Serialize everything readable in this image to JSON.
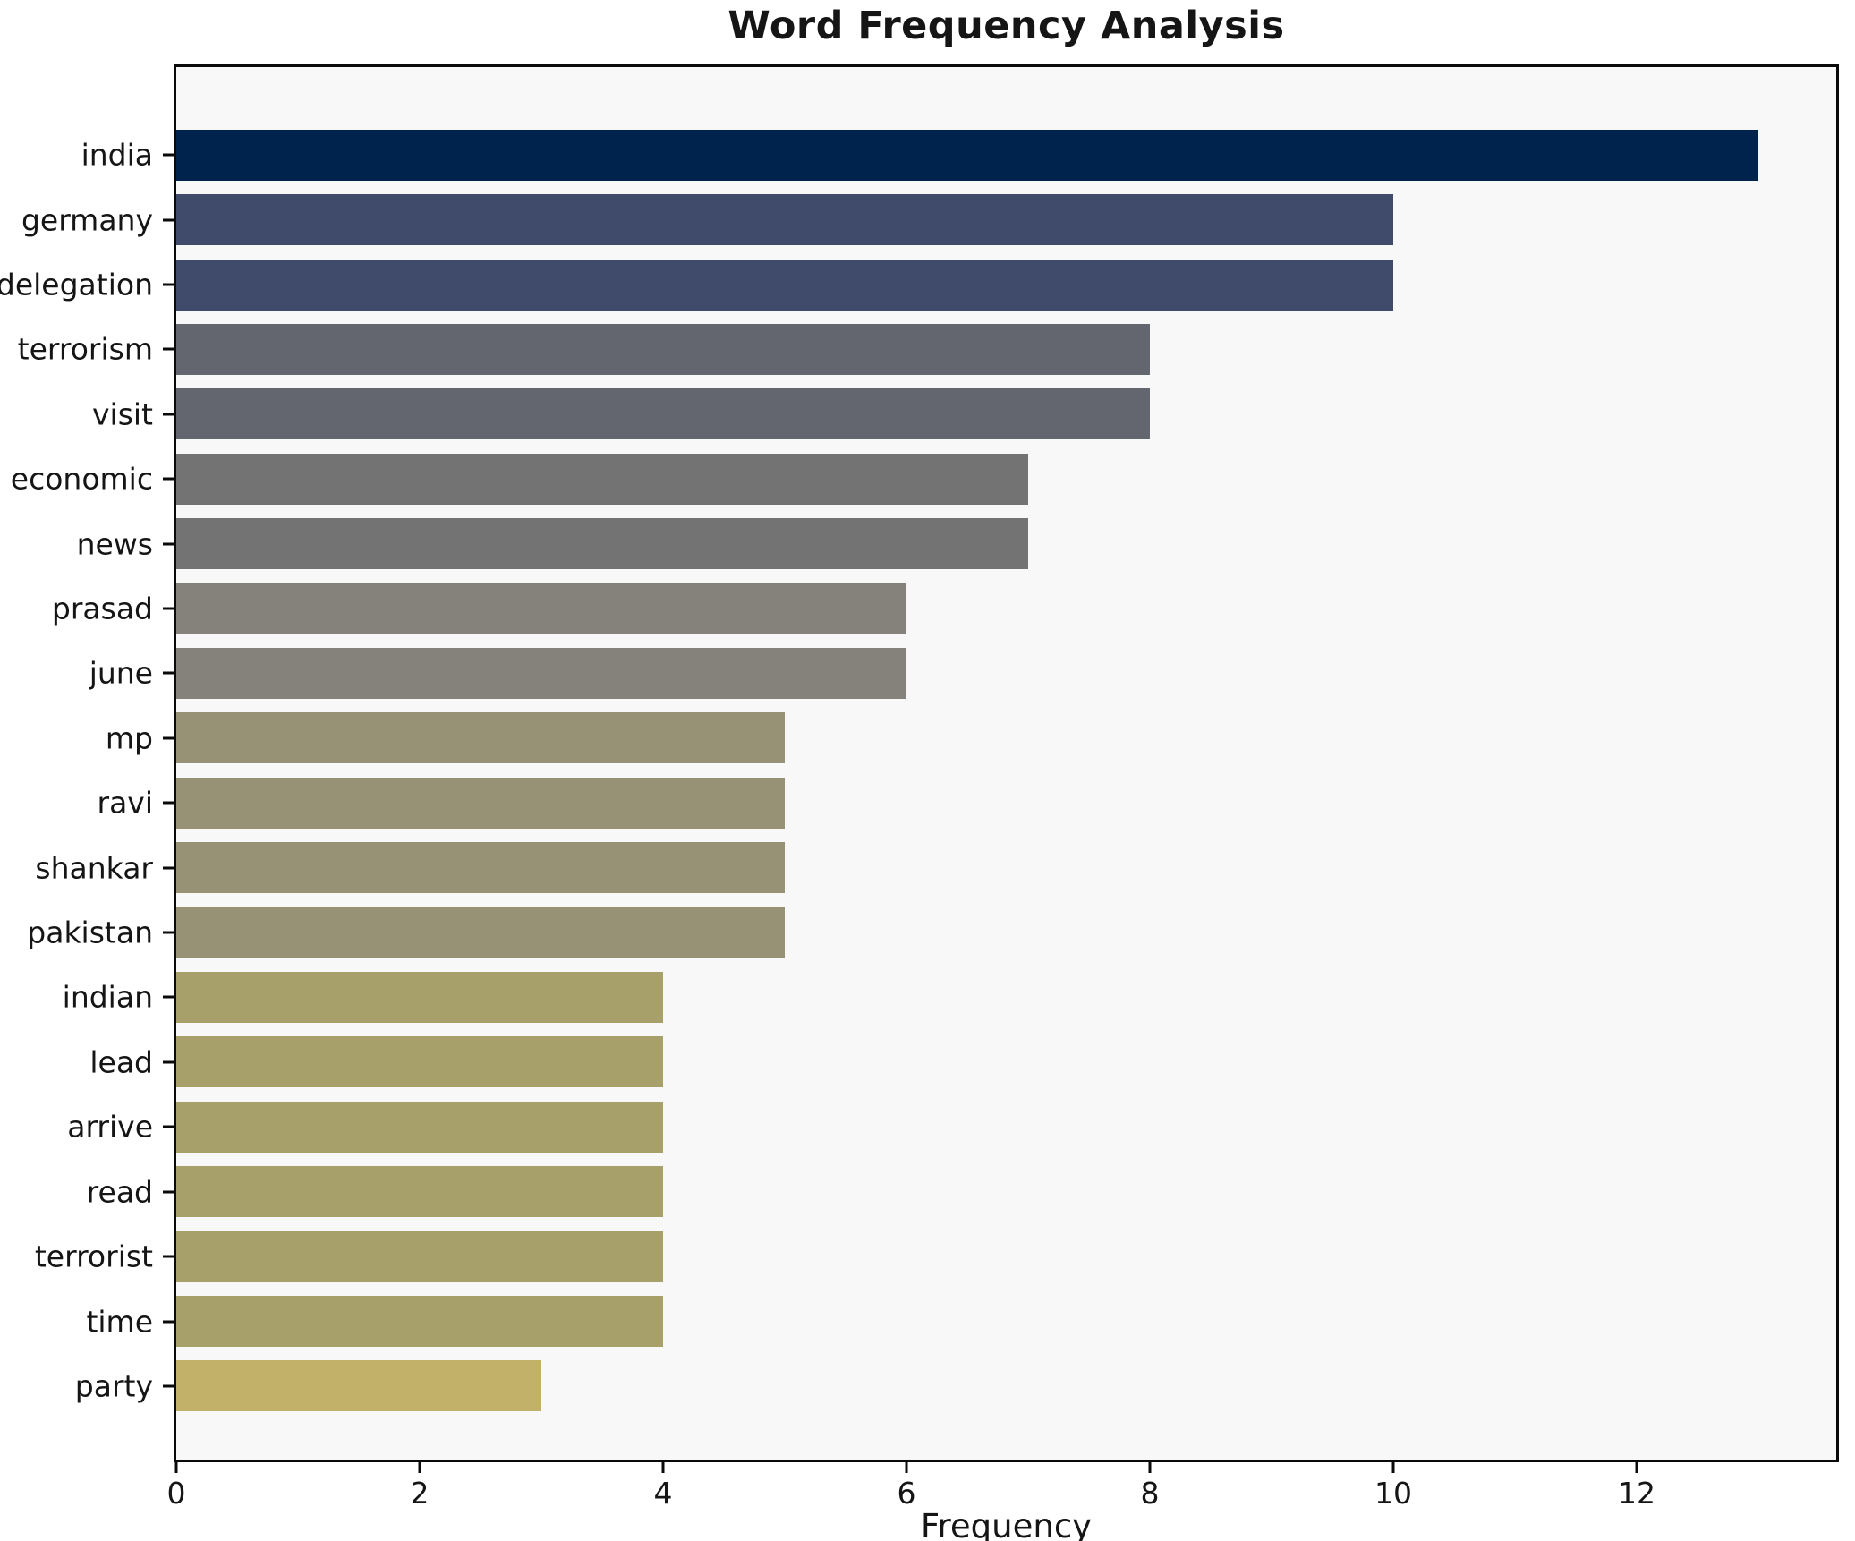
{
  "chart_data": {
    "type": "bar",
    "orientation": "horizontal",
    "title": "Word Frequency Analysis",
    "xlabel": "Frequency",
    "ylabel": "",
    "categories": [
      "india",
      "germany",
      "delegation",
      "terrorism",
      "visit",
      "economic",
      "news",
      "prasad",
      "june",
      "mp",
      "ravi",
      "shankar",
      "pakistan",
      "indian",
      "lead",
      "arrive",
      "read",
      "terrorist",
      "time",
      "party"
    ],
    "values": [
      13,
      10,
      10,
      8,
      8,
      7,
      7,
      6,
      6,
      5,
      5,
      5,
      5,
      4,
      4,
      4,
      4,
      4,
      4,
      3
    ],
    "bar_colors": [
      "#00234e",
      "#404b6b",
      "#404b6b",
      "#63656f",
      "#63656f",
      "#737374",
      "#737374",
      "#84827b",
      "#84827b",
      "#979275",
      "#979275",
      "#979275",
      "#979275",
      "#a8a06b",
      "#a8a06b",
      "#a8a06b",
      "#a8a06b",
      "#a8a06b",
      "#a8a06b",
      "#c2b169"
    ],
    "xticks": [
      0,
      2,
      4,
      6,
      8,
      10,
      12
    ],
    "xlim": [
      0,
      13.64
    ],
    "grid": false,
    "legend": "none",
    "plot_background": "#f8f8f8",
    "page_background": "#ffffff",
    "axis_color": "#0a0a0a"
  }
}
